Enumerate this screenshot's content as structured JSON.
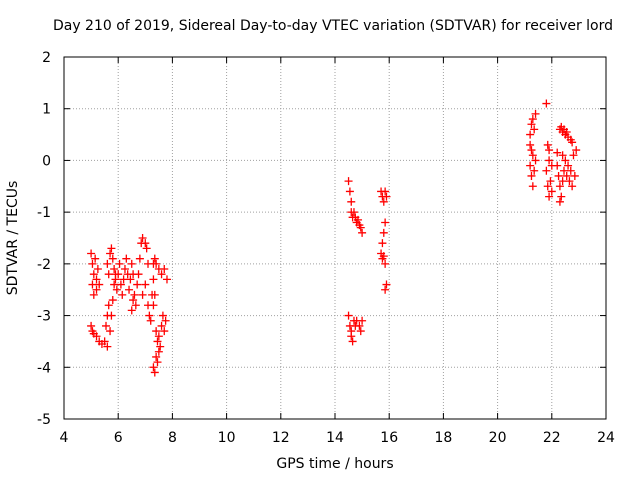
{
  "chart_data": {
    "type": "scatter",
    "title": "Day 210 of 2019, Sidereal Day-to-day VTEC variation (SDTVAR) for receiver lord",
    "xlabel": "GPS time / hours",
    "ylabel": "SDTVAR / TECUs",
    "xlim": [
      4,
      24
    ],
    "ylim": [
      -5,
      2
    ],
    "xticks": [
      4,
      6,
      8,
      10,
      12,
      14,
      16,
      18,
      20,
      22,
      24
    ],
    "yticks": [
      -5,
      -4,
      -3,
      -2,
      -1,
      0,
      1,
      2
    ],
    "grid": true,
    "legend": null,
    "series": [
      {
        "name": "SDTVAR",
        "marker": "+",
        "color": "#ff0000",
        "points": [
          [
            5.0,
            -1.8
          ],
          [
            5.05,
            -2.0
          ],
          [
            5.1,
            -2.2
          ],
          [
            5.15,
            -1.9
          ],
          [
            5.2,
            -2.3
          ],
          [
            5.25,
            -2.1
          ],
          [
            5.3,
            -2.4
          ],
          [
            5.05,
            -2.4
          ],
          [
            5.1,
            -2.6
          ],
          [
            5.2,
            -2.5
          ],
          [
            5.0,
            -3.2
          ],
          [
            5.05,
            -3.3
          ],
          [
            5.1,
            -3.35
          ],
          [
            5.2,
            -3.4
          ],
          [
            5.3,
            -3.5
          ],
          [
            5.4,
            -3.55
          ],
          [
            5.5,
            -3.5
          ],
          [
            5.6,
            -3.6
          ],
          [
            5.55,
            -3.2
          ],
          [
            5.6,
            -3.0
          ],
          [
            5.65,
            -2.8
          ],
          [
            5.7,
            -3.3
          ],
          [
            5.75,
            -3.0
          ],
          [
            5.8,
            -2.7
          ],
          [
            5.85,
            -2.4
          ],
          [
            5.9,
            -2.2
          ],
          [
            5.6,
            -2.0
          ],
          [
            5.65,
            -2.2
          ],
          [
            5.7,
            -1.8
          ],
          [
            5.75,
            -1.7
          ],
          [
            5.8,
            -1.9
          ],
          [
            5.85,
            -2.1
          ],
          [
            5.9,
            -2.3
          ],
          [
            5.95,
            -2.5
          ],
          [
            6.0,
            -2.2
          ],
          [
            6.05,
            -2.0
          ],
          [
            6.1,
            -2.4
          ],
          [
            6.15,
            -2.6
          ],
          [
            6.2,
            -2.3
          ],
          [
            6.25,
            -2.1
          ],
          [
            6.3,
            -1.9
          ],
          [
            6.35,
            -2.2
          ],
          [
            6.4,
            -2.5
          ],
          [
            6.45,
            -2.3
          ],
          [
            6.5,
            -2.0
          ],
          [
            6.55,
            -2.2
          ],
          [
            6.6,
            -2.6
          ],
          [
            6.65,
            -2.8
          ],
          [
            6.7,
            -2.4
          ],
          [
            6.75,
            -2.2
          ],
          [
            6.8,
            -1.9
          ],
          [
            6.85,
            -1.6
          ],
          [
            6.9,
            -1.5
          ],
          [
            7.0,
            -1.6
          ],
          [
            7.05,
            -1.7
          ],
          [
            7.1,
            -2.0
          ],
          [
            6.5,
            -2.9
          ],
          [
            6.55,
            -2.7
          ],
          [
            6.9,
            -2.6
          ],
          [
            7.0,
            -2.4
          ],
          [
            7.1,
            -2.8
          ],
          [
            7.15,
            -3.0
          ],
          [
            7.2,
            -3.1
          ],
          [
            7.25,
            -2.6
          ],
          [
            7.3,
            -2.3
          ],
          [
            7.3,
            -2.0
          ],
          [
            7.35,
            -1.9
          ],
          [
            7.4,
            -2.0
          ],
          [
            7.5,
            -2.1
          ],
          [
            7.6,
            -2.2
          ],
          [
            7.7,
            -2.1
          ],
          [
            7.8,
            -2.3
          ],
          [
            7.4,
            -3.3
          ],
          [
            7.45,
            -3.5
          ],
          [
            7.5,
            -3.7
          ],
          [
            7.4,
            -3.8
          ],
          [
            7.3,
            -4.0
          ],
          [
            7.35,
            -4.1
          ],
          [
            7.45,
            -3.9
          ],
          [
            7.5,
            -3.4
          ],
          [
            7.55,
            -3.6
          ],
          [
            7.6,
            -3.2
          ],
          [
            7.65,
            -3.0
          ],
          [
            7.7,
            -3.3
          ],
          [
            7.75,
            -3.1
          ],
          [
            7.3,
            -2.8
          ],
          [
            7.35,
            -2.6
          ],
          [
            14.5,
            -0.4
          ],
          [
            14.55,
            -0.6
          ],
          [
            14.6,
            -0.8
          ],
          [
            14.6,
            -1.0
          ],
          [
            14.65,
            -1.1
          ],
          [
            14.7,
            -1.0
          ],
          [
            14.75,
            -1.1
          ],
          [
            14.8,
            -1.2
          ],
          [
            14.85,
            -1.15
          ],
          [
            14.9,
            -1.25
          ],
          [
            14.95,
            -1.3
          ],
          [
            15.0,
            -1.4
          ],
          [
            14.5,
            -3.0
          ],
          [
            14.55,
            -3.2
          ],
          [
            14.6,
            -3.4
          ],
          [
            14.65,
            -3.5
          ],
          [
            14.6,
            -3.3
          ],
          [
            14.7,
            -3.1
          ],
          [
            14.75,
            -3.2
          ],
          [
            14.8,
            -3.1
          ],
          [
            14.9,
            -3.2
          ],
          [
            14.95,
            -3.3
          ],
          [
            15.0,
            -3.1
          ],
          [
            15.7,
            -0.6
          ],
          [
            15.75,
            -0.7
          ],
          [
            15.8,
            -0.8
          ],
          [
            15.85,
            -0.6
          ],
          [
            15.9,
            -0.7
          ],
          [
            15.85,
            -1.2
          ],
          [
            15.8,
            -1.4
          ],
          [
            15.75,
            -1.6
          ],
          [
            15.7,
            -1.8
          ],
          [
            15.75,
            -1.9
          ],
          [
            15.8,
            -1.85
          ],
          [
            15.85,
            -2.0
          ],
          [
            15.9,
            -2.4
          ],
          [
            15.85,
            -2.5
          ],
          [
            21.2,
            0.5
          ],
          [
            21.25,
            0.7
          ],
          [
            21.3,
            0.8
          ],
          [
            21.35,
            0.6
          ],
          [
            21.4,
            0.9
          ],
          [
            21.2,
            0.3
          ],
          [
            21.25,
            0.2
          ],
          [
            21.2,
            -0.1
          ],
          [
            21.25,
            -0.3
          ],
          [
            21.3,
            0.1
          ],
          [
            21.35,
            -0.2
          ],
          [
            21.4,
            0.0
          ],
          [
            21.3,
            -0.5
          ],
          [
            21.8,
            1.1
          ],
          [
            21.85,
            0.3
          ],
          [
            21.9,
            0.0
          ],
          [
            21.8,
            -0.2
          ],
          [
            21.85,
            -0.5
          ],
          [
            21.9,
            -0.7
          ],
          [
            21.95,
            -0.4
          ],
          [
            22.0,
            -0.6
          ],
          [
            21.9,
            0.2
          ],
          [
            22.0,
            -0.1
          ],
          [
            22.3,
            0.6
          ],
          [
            22.35,
            0.65
          ],
          [
            22.4,
            0.55
          ],
          [
            22.45,
            0.6
          ],
          [
            22.5,
            0.5
          ],
          [
            22.55,
            0.55
          ],
          [
            22.6,
            0.45
          ],
          [
            22.7,
            0.4
          ],
          [
            22.75,
            0.35
          ],
          [
            22.2,
            -0.1
          ],
          [
            22.25,
            -0.3
          ],
          [
            22.3,
            -0.5
          ],
          [
            22.35,
            -0.7
          ],
          [
            22.3,
            -0.8
          ],
          [
            22.4,
            -0.4
          ],
          [
            22.45,
            -0.2
          ],
          [
            22.5,
            0.0
          ],
          [
            22.55,
            -0.3
          ],
          [
            22.6,
            -0.1
          ],
          [
            22.65,
            -0.4
          ],
          [
            22.7,
            -0.2
          ],
          [
            22.75,
            -0.5
          ],
          [
            22.8,
            0.1
          ],
          [
            22.85,
            -0.3
          ],
          [
            22.9,
            0.2
          ],
          [
            22.4,
            0.1
          ],
          [
            22.2,
            0.15
          ]
        ]
      }
    ]
  }
}
